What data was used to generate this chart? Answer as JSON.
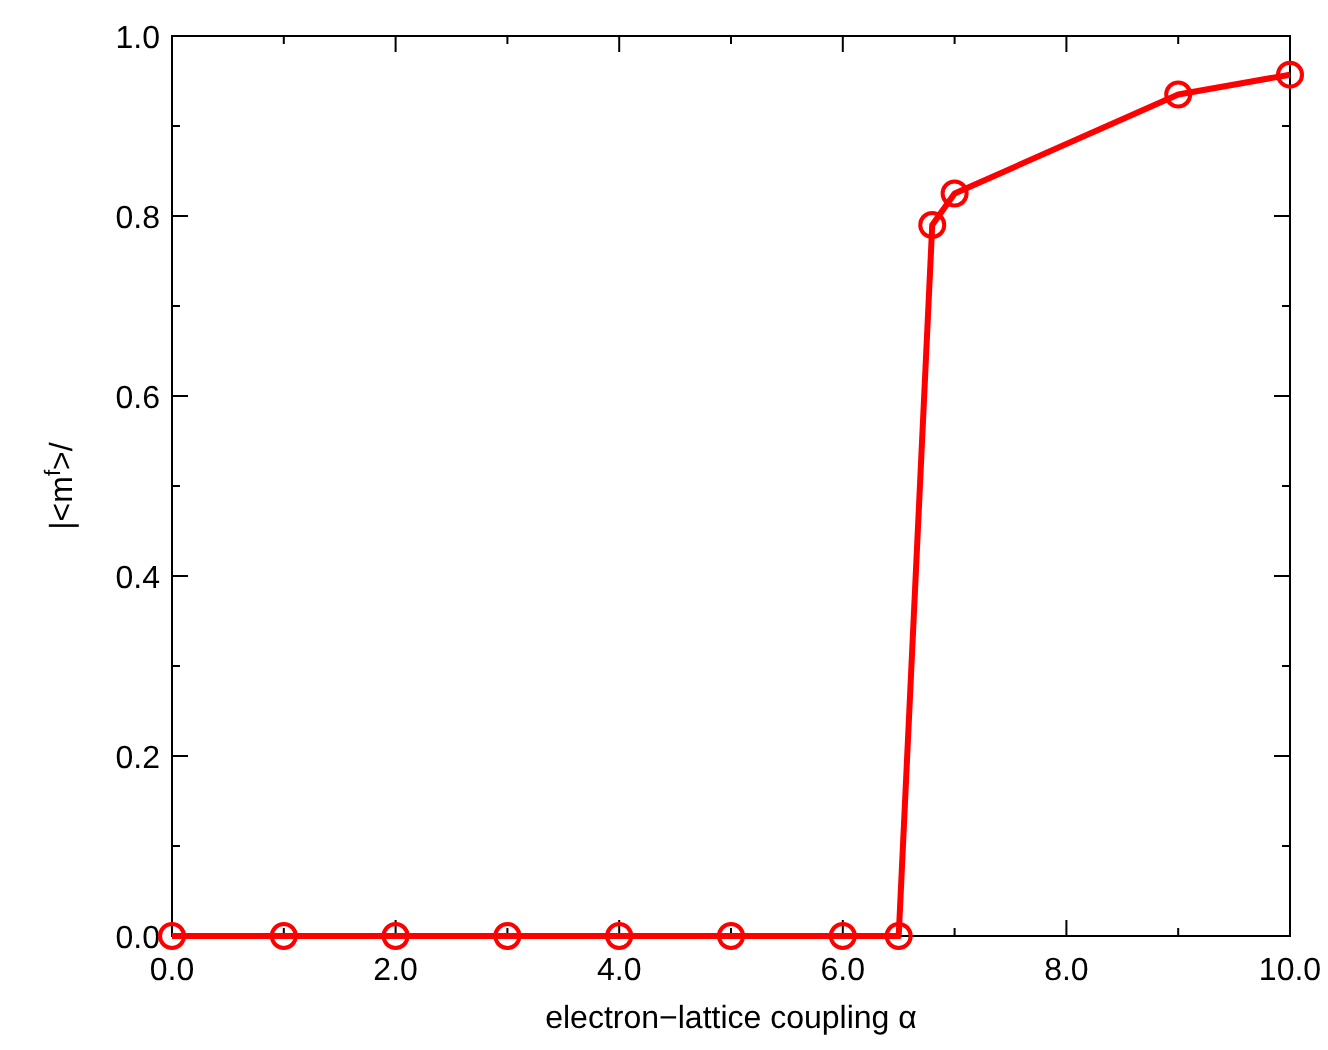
{
  "chart_data": {
    "type": "line",
    "xlabel": "electron−lattice coupling α",
    "ylabel": "|<m$^{f}$>/",
    "x": [
      0,
      1,
      2,
      3,
      4,
      5,
      6,
      6.5,
      6.8,
      7,
      9,
      10
    ],
    "series": [
      {
        "color": "#ff0000",
        "values": [
          0,
          0,
          0,
          0,
          0,
          0,
          0,
          0,
          0.79,
          0.825,
          0.935,
          0.957
        ]
      }
    ],
    "xlim": [
      0,
      10
    ],
    "ylim": [
      0,
      1
    ],
    "xticks": [
      {
        "value": 0,
        "label": "0.0"
      },
      {
        "value": 1,
        "label": null
      },
      {
        "value": 2,
        "label": "2.0"
      },
      {
        "value": 3,
        "label": null
      },
      {
        "value": 4,
        "label": "4.0"
      },
      {
        "value": 5,
        "label": null
      },
      {
        "value": 6,
        "label": "6.0"
      },
      {
        "value": 7,
        "label": null
      },
      {
        "value": 8,
        "label": "8.0"
      },
      {
        "value": 9,
        "label": null
      },
      {
        "value": 10,
        "label": "10.0"
      }
    ],
    "yticks": [
      {
        "value": 0,
        "label": "0.0"
      },
      {
        "value": 0.1,
        "label": null
      },
      {
        "value": 0.2,
        "label": "0.2"
      },
      {
        "value": 0.3,
        "label": null
      },
      {
        "value": 0.4,
        "label": "0.4"
      },
      {
        "value": 0.5,
        "label": null
      },
      {
        "value": 0.6,
        "label": "0.6"
      },
      {
        "value": 0.7,
        "label": null
      },
      {
        "value": 0.8,
        "label": "0.8"
      },
      {
        "value": 0.9,
        "label": null
      },
      {
        "value": 1,
        "label": "1.0"
      }
    ],
    "grid": false,
    "marker": "circle",
    "line_style": "solid"
  }
}
